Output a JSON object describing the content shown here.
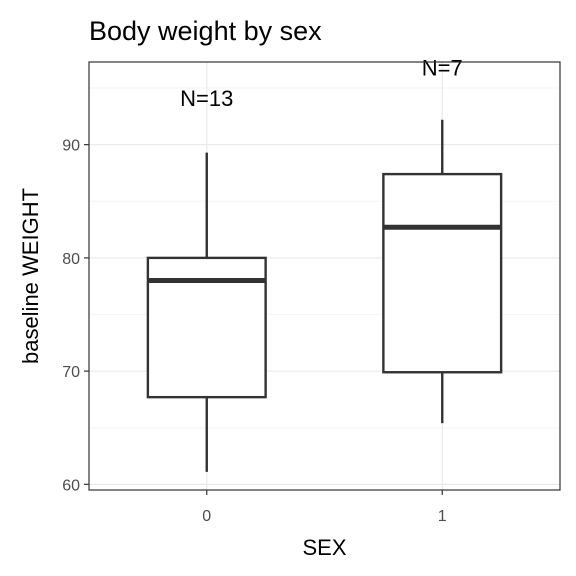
{
  "chart_data": {
    "type": "box",
    "title": "Body weight by sex",
    "xlabel": "SEX",
    "ylabel": "baseline WEIGHT",
    "categories": [
      "0",
      "1"
    ],
    "ylim": [
      59.5,
      97.3
    ],
    "yticks": [
      60,
      70,
      80,
      90
    ],
    "grid": true,
    "boxes": [
      {
        "category": "0",
        "n_label": "N=13",
        "whisker_low": 61.1,
        "q1": 67.7,
        "median": 78.0,
        "q3": 80.0,
        "whisker_high": 89.3,
        "n_label_y": 94.1
      },
      {
        "category": "1",
        "n_label": "N=7",
        "whisker_low": 65.4,
        "q1": 69.9,
        "median": 82.7,
        "q3": 87.4,
        "whisker_high": 92.2,
        "n_label_y": 96.8
      }
    ],
    "colors": {
      "box_stroke": "#333333",
      "grid_major": "#ebebeb",
      "grid_minor": "#f5f5f5",
      "panel_border": "#333333"
    }
  }
}
